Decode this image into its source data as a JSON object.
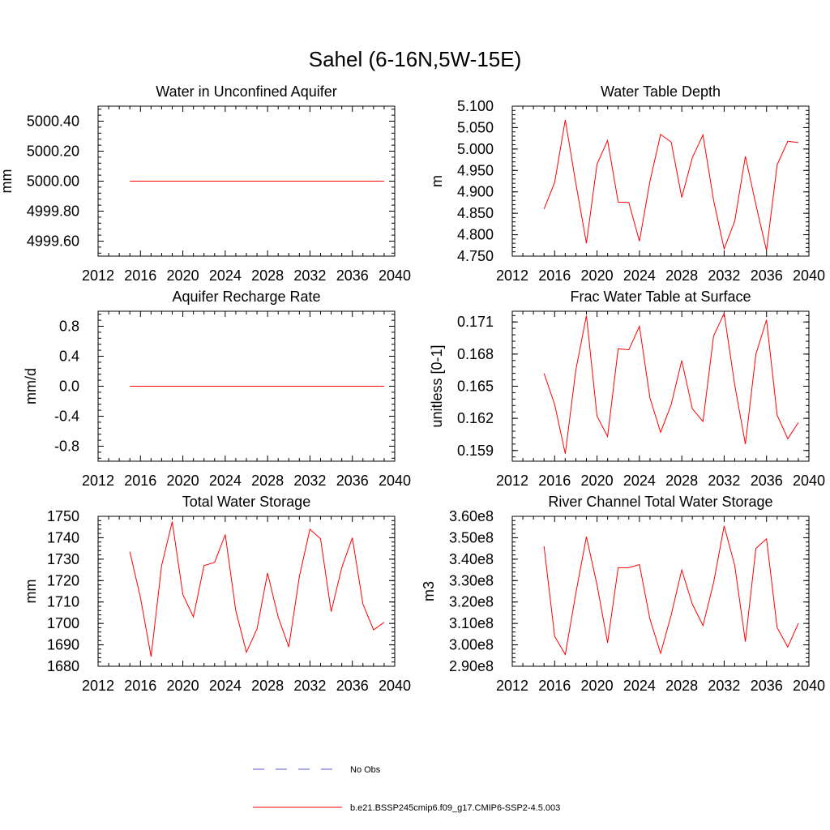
{
  "figure": {
    "title": "Sahel (6-16N,5W-15E)",
    "legend": [
      {
        "label": "No Obs",
        "color": "#5b5bd6",
        "style": "dashed"
      },
      {
        "label": "b.e21.BSSP245cmip6.f09_g17.CMIP6-SSP2-4.5.003",
        "color": "#ff0000",
        "style": "solid"
      }
    ]
  },
  "chart_data": [
    {
      "type": "line",
      "title": "Water in Unconfined Aquifer",
      "ylabel": "mm",
      "xlim": [
        2012,
        2040
      ],
      "ylim": [
        4999.5,
        5000.5
      ],
      "xticks": [
        "2012",
        "2016",
        "2020",
        "2024",
        "2028",
        "2032",
        "2036",
        "2040"
      ],
      "yticks": [
        "4999.60",
        "4999.80",
        "5000.00",
        "5000.20",
        "5000.40"
      ],
      "series": [
        {
          "color": "#ff0000",
          "x": [
            2015,
            2016,
            2017,
            2018,
            2019,
            2020,
            2021,
            2022,
            2023,
            2024,
            2025,
            2026,
            2027,
            2028,
            2029,
            2030,
            2031,
            2032,
            2033,
            2034,
            2035,
            2036,
            2037,
            2038,
            2039
          ],
          "y": [
            5000.0,
            5000.0,
            5000.0,
            5000.0,
            5000.0,
            5000.0,
            5000.0,
            5000.0,
            5000.0,
            5000.0,
            5000.0,
            5000.0,
            5000.0,
            5000.0,
            5000.0,
            5000.0,
            5000.0,
            5000.0,
            5000.0,
            5000.0,
            5000.0,
            5000.0,
            5000.0,
            5000.0,
            5000.0
          ]
        }
      ]
    },
    {
      "type": "line",
      "title": "Water Table Depth",
      "ylabel": "m",
      "xlim": [
        2012,
        2040
      ],
      "ylim": [
        4.75,
        5.1
      ],
      "xticks": [
        "2012",
        "2016",
        "2020",
        "2024",
        "2028",
        "2032",
        "2036",
        "2040"
      ],
      "yticks": [
        "4.750",
        "4.800",
        "4.850",
        "4.900",
        "4.950",
        "5.000",
        "5.050",
        "5.100"
      ],
      "series": [
        {
          "color": "#ff0000",
          "x": [
            2015,
            2016,
            2017,
            2018,
            2019,
            2020,
            2021,
            2022,
            2023,
            2024,
            2025,
            2026,
            2027,
            2028,
            2029,
            2030,
            2031,
            2032,
            2033,
            2034,
            2035,
            2036,
            2037,
            2038,
            2039
          ],
          "y": [
            4.86,
            4.922,
            5.068,
            4.92,
            4.78,
            4.965,
            5.02,
            4.876,
            4.875,
            4.785,
            4.925,
            5.034,
            5.016,
            4.887,
            4.98,
            5.033,
            4.88,
            4.767,
            4.832,
            4.983,
            4.87,
            4.763,
            4.963,
            5.018,
            5.015
          ]
        }
      ]
    },
    {
      "type": "line",
      "title": "Aquifer Recharge Rate",
      "ylabel": "mm/d",
      "xlim": [
        2012,
        2040
      ],
      "ylim": [
        -1.0,
        1.0
      ],
      "xticks": [
        "2012",
        "2016",
        "2020",
        "2024",
        "2028",
        "2032",
        "2036",
        "2040"
      ],
      "yticks": [
        "-0.8",
        "-0.4",
        "0.0",
        "0.4",
        "0.8"
      ],
      "series": [
        {
          "color": "#ff0000",
          "x": [
            2015,
            2016,
            2017,
            2018,
            2019,
            2020,
            2021,
            2022,
            2023,
            2024,
            2025,
            2026,
            2027,
            2028,
            2029,
            2030,
            2031,
            2032,
            2033,
            2034,
            2035,
            2036,
            2037,
            2038,
            2039
          ],
          "y": [
            0,
            0,
            0,
            0,
            0,
            0,
            0,
            0,
            0,
            0,
            0,
            0,
            0,
            0,
            0,
            0,
            0,
            0,
            0,
            0,
            0,
            0,
            0,
            0,
            0
          ]
        }
      ]
    },
    {
      "type": "line",
      "title": "Frac Water Table at Surface",
      "ylabel": "unitless [0-1]",
      "xlim": [
        2012,
        2040
      ],
      "ylim": [
        0.158,
        0.172
      ],
      "xticks": [
        "2012",
        "2016",
        "2020",
        "2024",
        "2028",
        "2032",
        "2036",
        "2040"
      ],
      "yticks": [
        "0.159",
        "0.162",
        "0.165",
        "0.168",
        "0.171"
      ],
      "series": [
        {
          "color": "#ff0000",
          "x": [
            2015,
            2016,
            2017,
            2018,
            2019,
            2020,
            2021,
            2022,
            2023,
            2024,
            2025,
            2026,
            2027,
            2028,
            2029,
            2030,
            2031,
            2032,
            2033,
            2034,
            2035,
            2036,
            2037,
            2038,
            2039
          ],
          "y": [
            0.1662,
            0.1633,
            0.1587,
            0.1665,
            0.1716,
            0.1622,
            0.1603,
            0.1685,
            0.1684,
            0.1706,
            0.1639,
            0.1607,
            0.1633,
            0.1674,
            0.1629,
            0.1617,
            0.1697,
            0.1718,
            0.1651,
            0.1596,
            0.168,
            0.1712,
            0.1623,
            0.1601,
            0.1616
          ]
        }
      ]
    },
    {
      "type": "line",
      "title": "Total Water Storage",
      "ylabel": "mm",
      "xlim": [
        2012,
        2040
      ],
      "ylim": [
        1680,
        1750
      ],
      "xticks": [
        "2012",
        "2016",
        "2020",
        "2024",
        "2028",
        "2032",
        "2036",
        "2040"
      ],
      "yticks": [
        "1680",
        "1690",
        "1700",
        "1710",
        "1720",
        "1730",
        "1740",
        "1750"
      ],
      "series": [
        {
          "color": "#ff0000",
          "x": [
            2015,
            2016,
            2017,
            2018,
            2019,
            2020,
            2021,
            2022,
            2023,
            2024,
            2025,
            2026,
            2027,
            2028,
            2029,
            2030,
            2031,
            2032,
            2033,
            2034,
            2035,
            2036,
            2037,
            2038,
            2039
          ],
          "y": [
            1733.5,
            1712,
            1684.5,
            1727,
            1747.5,
            1713.5,
            1703,
            1727,
            1728.5,
            1741.5,
            1706,
            1686.5,
            1697.5,
            1723.5,
            1703,
            1689,
            1722,
            1744,
            1739.5,
            1705.5,
            1726,
            1740,
            1709,
            1697,
            1700.5
          ]
        }
      ]
    },
    {
      "type": "line",
      "title": "River Channel Total Water Storage",
      "ylabel": "m3",
      "xlim": [
        2012,
        2040
      ],
      "ylim": [
        290000000,
        360000000
      ],
      "xticks": [
        "2012",
        "2016",
        "2020",
        "2024",
        "2028",
        "2032",
        "2036",
        "2040"
      ],
      "yticks": [
        "2.90e8",
        "3.00e8",
        "3.10e8",
        "3.20e8",
        "3.30e8",
        "3.40e8",
        "3.50e8",
        "3.60e8"
      ],
      "series": [
        {
          "color": "#ff0000",
          "x": [
            2015,
            2016,
            2017,
            2018,
            2019,
            2020,
            2021,
            2022,
            2023,
            2024,
            2025,
            2026,
            2027,
            2028,
            2029,
            2030,
            2031,
            2032,
            2033,
            2034,
            2035,
            2036,
            2037,
            2038,
            2039
          ],
          "y": [
            346000000,
            304000000,
            295500000,
            324000000,
            350500000,
            328000000,
            301000000,
            336000000,
            336000000,
            337500000,
            312000000,
            296000000,
            314000000,
            335000000,
            319000000,
            309000000,
            329000000,
            355500000,
            337000000,
            301500000,
            345000000,
            349500000,
            308000000,
            299000000,
            310000000
          ]
        }
      ]
    }
  ]
}
